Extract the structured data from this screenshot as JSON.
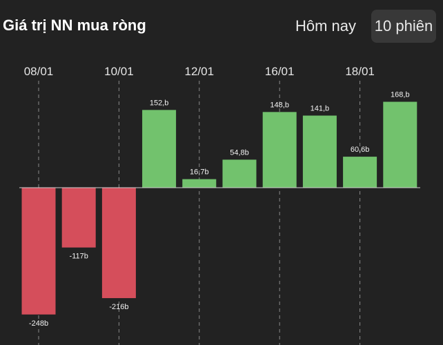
{
  "header": {
    "title": "Giá trị NN mua ròng",
    "tabs": [
      {
        "label": "Hôm nay",
        "active": false
      },
      {
        "label": "10 phiên",
        "active": true
      }
    ]
  },
  "colors": {
    "background": "#222222",
    "positive": "#72c26d",
    "negative": "#d54e5b",
    "baseline": "#cfcfcf",
    "tab_active_bg": "#383838"
  },
  "chart_data": {
    "type": "bar",
    "date_ticks": [
      "08/01",
      "10/01",
      "12/01",
      "16/01",
      "18/01"
    ],
    "values": [
      -248,
      -117,
      -216,
      152,
      16.7,
      54.8,
      148,
      141,
      60.6,
      168
    ],
    "labels": [
      "-248b",
      "-117b",
      "-216b",
      "152,b",
      "16,7b",
      "54,8b",
      "148,b",
      "141,b",
      "60,6b",
      "168,b"
    ],
    "grid": "vertical dashed lines at date ticks"
  }
}
